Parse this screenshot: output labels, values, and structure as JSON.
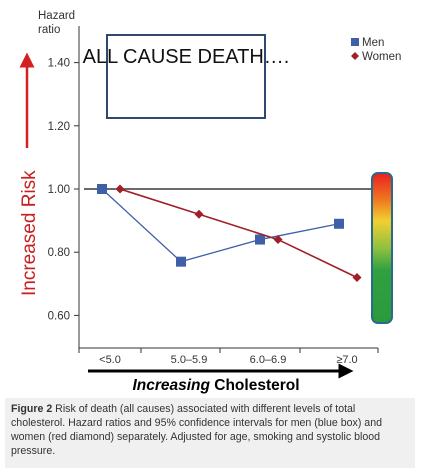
{
  "chart_data": {
    "type": "line",
    "categories": [
      "<5.0",
      "5.0–5.9",
      "6.0–6.9",
      "≥7.0"
    ],
    "series": [
      {
        "name": "Men",
        "marker": "square",
        "color": "#3f5fa8",
        "values": [
          1.0,
          0.77,
          0.84,
          0.89
        ]
      },
      {
        "name": "Women",
        "marker": "diamond",
        "color": "#a02028",
        "values": [
          1.0,
          0.92,
          0.84,
          0.72
        ]
      }
    ],
    "ylabel_line1": "Hazard",
    "ylabel_line2": "ratio",
    "yticks": [
      "0.60",
      "0.80",
      "1.00",
      "1.20",
      "1.40"
    ],
    "ytick_values": [
      0.6,
      0.8,
      1.0,
      1.2,
      1.4
    ],
    "ylim": [
      0.58,
      1.5
    ],
    "reference_line": 1.0,
    "legend_position": "top-right"
  },
  "annotations": {
    "title_box": "ALL CAUSE DEATH….",
    "vertical_arrow_label": "Increased Risk",
    "horizontal_arrow_label_italic": "Increasing",
    "horizontal_arrow_label_rest": " Cholesterol"
  },
  "caption": {
    "label": "Figure 2",
    "text": " Risk of death (all causes) associated with different levels of total cholesterol. Hazard ratios and 95% confidence intervals for men (blue box) and women (red diamond) separately. Adjusted for age, smoking and systolic blood pressure."
  },
  "colors": {
    "men": "#3f5fa8",
    "women": "#a02028",
    "arrow_red": "#d42020",
    "box_border": "#2d4a6e"
  }
}
